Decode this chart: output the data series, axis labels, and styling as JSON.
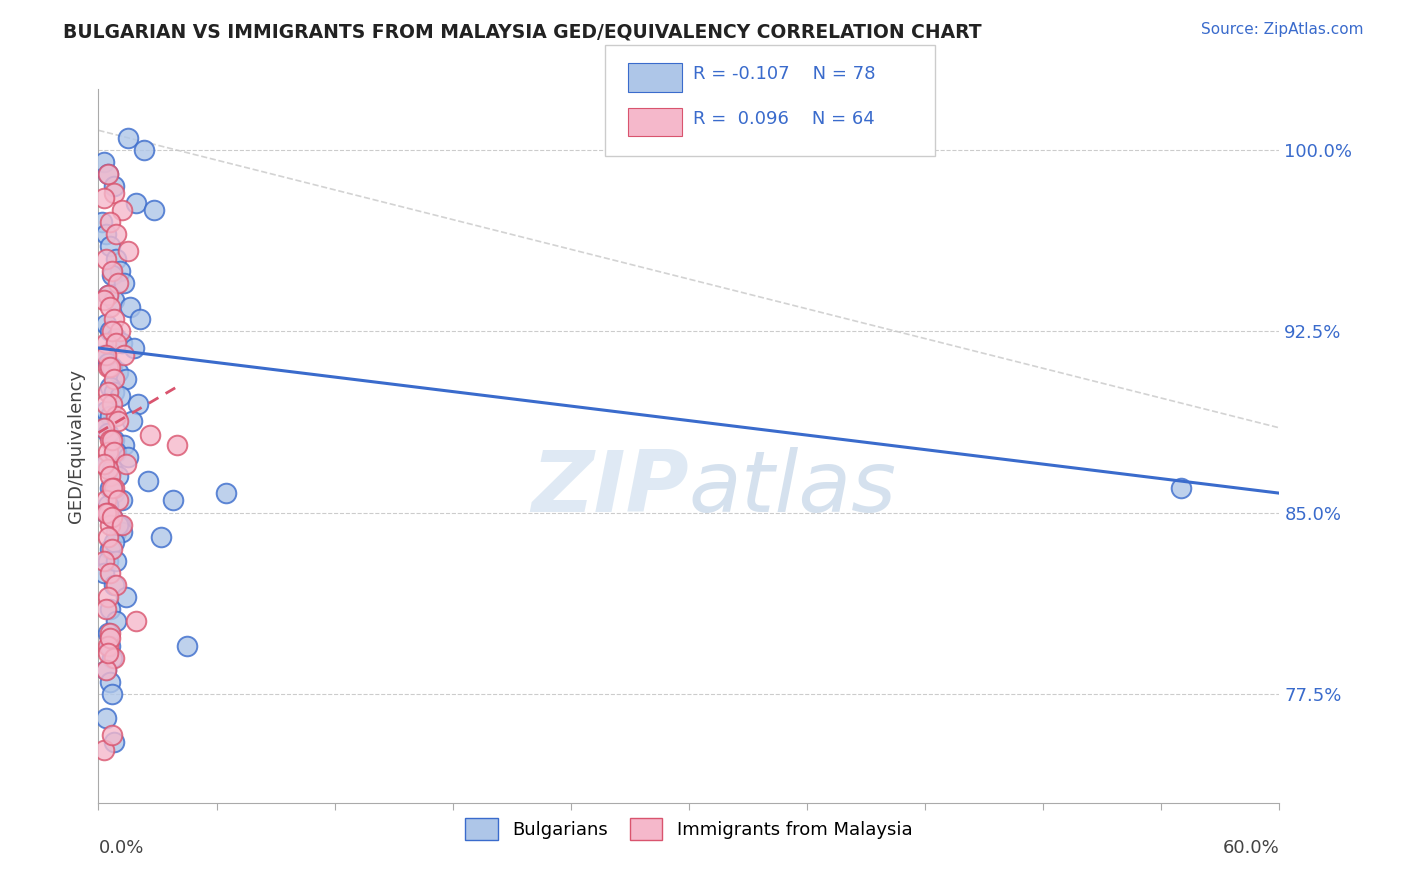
{
  "title": "BULGARIAN VS IMMIGRANTS FROM MALAYSIA GED/EQUIVALENCY CORRELATION CHART",
  "source": "Source: ZipAtlas.com",
  "ylabel": "GED/Equivalency",
  "yticks": [
    77.5,
    85.0,
    92.5,
    100.0
  ],
  "ytick_labels": [
    "77.5%",
    "85.0%",
    "92.5%",
    "100.0%"
  ],
  "xmin": 0.0,
  "xmax": 60.0,
  "ymin": 73.0,
  "ymax": 102.5,
  "legend_r1": "R = -0.107",
  "legend_n1": "N = 78",
  "legend_r2": "R =  0.096",
  "legend_n2": "N = 64",
  "series1_color": "#aec6e8",
  "series2_color": "#f5b8cb",
  "trend1_color": "#3a6bcc",
  "trend2_color": "#d9546e",
  "gray_line_color": "#c8c8c8",
  "legend_text_color": "#3a6bcc",
  "watermark_color": "#ccdff5",
  "series1_label": "Bulgarians",
  "series2_label": "Immigrants from Malaysia",
  "blue_trend_x0": 0.0,
  "blue_trend_y0": 91.8,
  "blue_trend_x1": 60.0,
  "blue_trend_y1": 85.8,
  "pink_trend_x0": 0.0,
  "pink_trend_y0": 88.3,
  "pink_trend_x1": 4.0,
  "pink_trend_y1": 90.2,
  "gray_diag_x0": 0.0,
  "gray_diag_y0": 100.8,
  "gray_diag_x1": 60.0,
  "gray_diag_y1": 88.5,
  "blue_scatter_x": [
    1.5,
    2.3,
    0.3,
    0.5,
    0.8,
    1.9,
    2.8,
    0.2,
    0.4,
    0.6,
    0.9,
    1.1,
    0.7,
    1.3,
    0.5,
    0.8,
    1.6,
    2.1,
    0.4,
    0.6,
    0.9,
    1.2,
    1.8,
    0.3,
    0.5,
    0.7,
    1.0,
    1.4,
    0.6,
    0.8,
    1.1,
    2.0,
    0.4,
    0.6,
    1.7,
    0.3,
    0.5,
    0.8,
    1.3,
    0.9,
    1.5,
    0.4,
    0.7,
    1.0,
    2.5,
    0.6,
    0.8,
    1.2,
    0.5,
    0.4,
    0.7,
    1.1,
    0.9,
    3.2,
    0.6,
    0.5,
    0.3,
    0.8,
    1.4,
    0.6,
    0.9,
    0.5,
    4.5,
    0.7,
    0.4,
    0.6,
    1.2,
    0.8,
    3.8,
    0.5,
    0.7,
    0.9,
    55.0,
    6.5,
    0.6,
    1.0,
    0.4,
    0.8
  ],
  "blue_scatter_y": [
    100.5,
    100.0,
    99.5,
    99.0,
    98.5,
    97.8,
    97.5,
    97.0,
    96.5,
    96.0,
    95.5,
    95.0,
    94.8,
    94.5,
    94.0,
    93.8,
    93.5,
    93.0,
    92.8,
    92.5,
    92.2,
    92.0,
    91.8,
    91.5,
    91.2,
    91.0,
    90.8,
    90.5,
    90.2,
    90.0,
    89.8,
    89.5,
    89.2,
    89.0,
    88.8,
    88.5,
    88.3,
    88.0,
    87.8,
    87.5,
    87.3,
    87.0,
    86.8,
    86.5,
    86.3,
    86.0,
    85.8,
    85.5,
    85.3,
    85.0,
    84.8,
    84.5,
    84.2,
    84.0,
    83.5,
    83.0,
    82.5,
    82.0,
    81.5,
    81.0,
    80.5,
    80.0,
    79.5,
    79.0,
    78.5,
    78.0,
    84.2,
    83.8,
    85.5,
    85.0,
    77.5,
    83.0,
    86.0,
    85.8,
    79.5,
    84.5,
    76.5,
    75.5
  ],
  "pink_scatter_x": [
    0.5,
    0.8,
    1.2,
    0.3,
    0.6,
    0.9,
    1.5,
    0.4,
    0.7,
    1.0,
    0.5,
    0.3,
    0.6,
    0.8,
    1.1,
    0.4,
    0.7,
    0.9,
    1.3,
    0.5,
    0.4,
    0.6,
    0.8,
    0.5,
    0.7,
    0.9,
    1.0,
    0.4,
    0.3,
    0.6,
    0.5,
    0.7,
    0.8,
    1.4,
    0.5,
    0.3,
    0.6,
    0.8,
    0.4,
    0.7,
    1.0,
    0.5,
    0.6,
    0.4,
    0.7,
    1.2,
    0.5,
    0.7,
    0.3,
    0.6,
    0.9,
    0.5,
    0.4,
    1.9,
    0.6,
    0.5,
    0.3,
    0.7,
    0.8,
    0.4,
    2.6,
    0.6,
    0.5,
    4.0
  ],
  "pink_scatter_y": [
    99.0,
    98.2,
    97.5,
    98.0,
    97.0,
    96.5,
    95.8,
    95.5,
    95.0,
    94.5,
    94.0,
    93.8,
    93.5,
    93.0,
    92.5,
    92.0,
    92.5,
    92.0,
    91.5,
    91.0,
    91.5,
    91.0,
    90.5,
    90.0,
    89.5,
    89.0,
    88.8,
    89.5,
    88.5,
    88.0,
    87.5,
    88.0,
    87.5,
    87.0,
    86.8,
    87.0,
    86.5,
    86.0,
    85.5,
    86.0,
    85.5,
    85.0,
    84.5,
    85.0,
    84.8,
    84.5,
    84.0,
    83.5,
    83.0,
    82.5,
    82.0,
    81.5,
    81.0,
    80.5,
    80.0,
    79.5,
    75.2,
    75.8,
    79.0,
    78.5,
    88.2,
    79.8,
    79.2,
    87.8
  ]
}
